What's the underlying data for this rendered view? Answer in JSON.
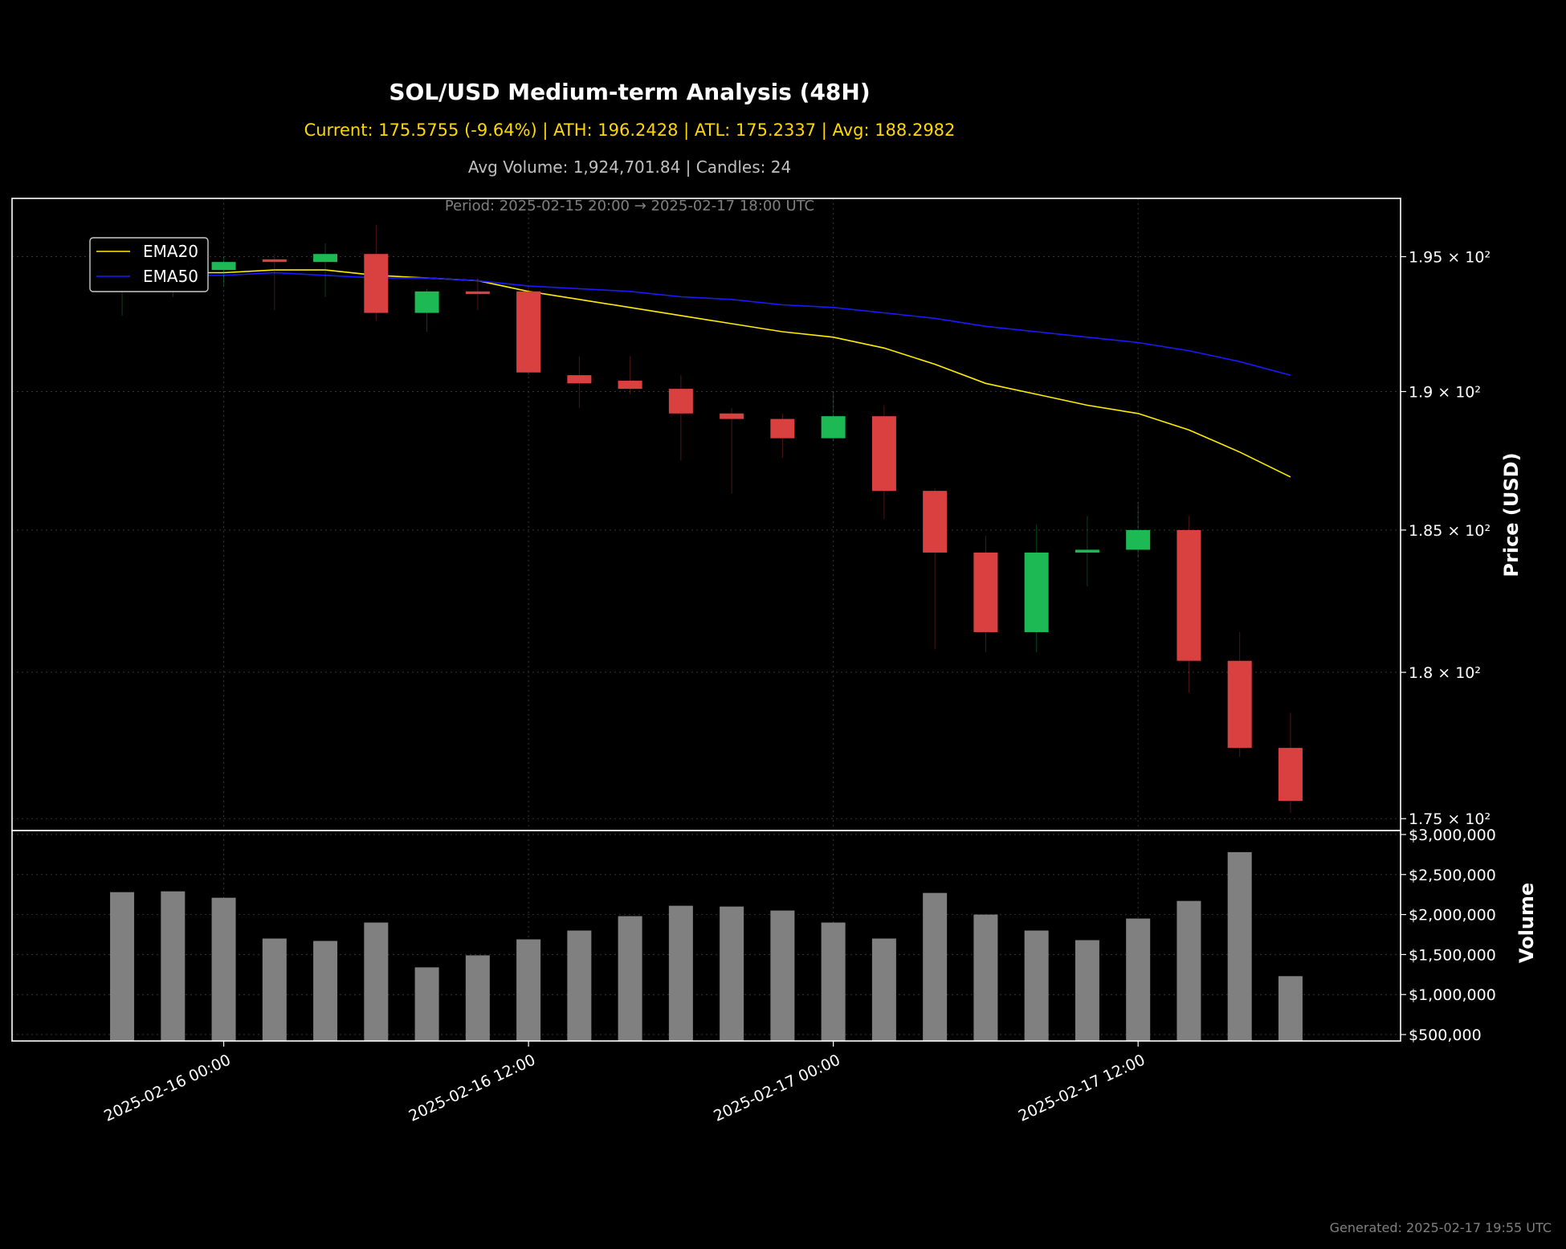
{
  "header": {
    "title": "SOL/USD Medium-term Analysis (48H)",
    "subtitle": "Current: 175.5755 (-9.64%) | ATH: 196.2428 | ATL: 175.2337 | Avg: 188.2982",
    "volume_info": "Avg Volume: 1,924,701.84 | Candles: 24",
    "period": "Period: 2025-02-15 20:00 → 2025-02-17 18:00 UTC"
  },
  "footer": {
    "generated": "Generated: 2025-02-17 19:55 UTC"
  },
  "colors": {
    "up": "#1db954",
    "down": "#d94040",
    "ema20": "#ffee00",
    "ema50": "#1a1aff",
    "volume": "#808080",
    "grid": "#333333"
  },
  "chart_data": [
    {
      "type": "candlestick",
      "title": "SOL/USD Medium-term Analysis (48H)",
      "ylabel": "Price (USD)",
      "yscale": "log",
      "ylim": [
        174.6,
        197.2
      ],
      "xlim": [
        "2025-02-15 15:40",
        "2025-02-17 22:20"
      ],
      "y_ticks": [
        175,
        180,
        185,
        190,
        195
      ],
      "y_tick_labels": [
        "1.75 × 10²",
        "1.8 × 10²",
        "1.85 × 10²",
        "1.9 × 10²",
        "1.95 × 10²"
      ],
      "x_ticks": [
        "2025-02-16 00:00",
        "2025-02-16 12:00",
        "2025-02-17 00:00",
        "2025-02-17 12:00"
      ],
      "grid": true,
      "legend_position": "upper-left",
      "candles": [
        {
          "t": "2025-02-15 20:00",
          "o": 194.2,
          "h": 195.2,
          "l": 192.8,
          "c": 194.3
        },
        {
          "t": "2025-02-15 22:00",
          "o": 194.3,
          "h": 195.6,
          "l": 193.5,
          "c": 194.4
        },
        {
          "t": "2025-02-16 00:00",
          "o": 194.5,
          "h": 195.0,
          "l": 193.9,
          "c": 194.8
        },
        {
          "t": "2025-02-16 02:00",
          "o": 194.9,
          "h": 195.1,
          "l": 193.0,
          "c": 194.8
        },
        {
          "t": "2025-02-16 04:00",
          "o": 194.8,
          "h": 195.5,
          "l": 193.5,
          "c": 195.1
        },
        {
          "t": "2025-02-16 06:00",
          "o": 195.1,
          "h": 196.2,
          "l": 192.6,
          "c": 192.9
        },
        {
          "t": "2025-02-16 08:00",
          "o": 192.9,
          "h": 193.8,
          "l": 192.2,
          "c": 193.7
        },
        {
          "t": "2025-02-16 10:00",
          "o": 193.7,
          "h": 194.2,
          "l": 193.0,
          "c": 193.6
        },
        {
          "t": "2025-02-16 12:00",
          "o": 193.7,
          "h": 193.9,
          "l": 190.6,
          "c": 190.7
        },
        {
          "t": "2025-02-16 14:00",
          "o": 190.6,
          "h": 191.3,
          "l": 189.4,
          "c": 190.3
        },
        {
          "t": "2025-02-16 16:00",
          "o": 190.4,
          "h": 191.3,
          "l": 189.9,
          "c": 190.1
        },
        {
          "t": "2025-02-16 18:00",
          "o": 190.1,
          "h": 190.6,
          "l": 187.5,
          "c": 189.2
        },
        {
          "t": "2025-02-16 20:00",
          "o": 189.2,
          "h": 189.4,
          "l": 186.3,
          "c": 189.0
        },
        {
          "t": "2025-02-16 22:00",
          "o": 189.0,
          "h": 189.2,
          "l": 187.6,
          "c": 188.3
        },
        {
          "t": "2025-02-17 00:00",
          "o": 188.3,
          "h": 190.0,
          "l": 188.2,
          "c": 189.1
        },
        {
          "t": "2025-02-17 02:00",
          "o": 189.1,
          "h": 189.5,
          "l": 185.4,
          "c": 186.4
        },
        {
          "t": "2025-02-17 04:00",
          "o": 186.4,
          "h": 186.5,
          "l": 180.8,
          "c": 184.2
        },
        {
          "t": "2025-02-17 06:00",
          "o": 184.2,
          "h": 184.8,
          "l": 180.7,
          "c": 181.4
        },
        {
          "t": "2025-02-17 08:00",
          "o": 181.4,
          "h": 185.2,
          "l": 180.7,
          "c": 184.2
        },
        {
          "t": "2025-02-17 10:00",
          "o": 184.2,
          "h": 185.5,
          "l": 183.0,
          "c": 184.3
        },
        {
          "t": "2025-02-17 12:00",
          "o": 184.3,
          "h": 186.0,
          "l": 184.0,
          "c": 185.0
        },
        {
          "t": "2025-02-17 14:00",
          "o": 185.0,
          "h": 185.5,
          "l": 179.3,
          "c": 180.4
        },
        {
          "t": "2025-02-17 16:00",
          "o": 180.4,
          "h": 181.4,
          "l": 177.1,
          "c": 177.4
        },
        {
          "t": "2025-02-17 18:00",
          "o": 177.4,
          "h": 178.6,
          "l": 175.2,
          "c": 175.6
        }
      ],
      "series": [
        {
          "name": "EMA20",
          "values": [
            194.3,
            194.4,
            194.4,
            194.5,
            194.5,
            194.3,
            194.2,
            194.1,
            193.7,
            193.4,
            193.1,
            192.8,
            192.5,
            192.2,
            192.0,
            191.6,
            191.0,
            190.3,
            189.9,
            189.5,
            189.2,
            188.6,
            187.8,
            186.9
          ]
        },
        {
          "name": "EMA50",
          "values": [
            194.3,
            194.3,
            194.3,
            194.4,
            194.3,
            194.2,
            194.2,
            194.1,
            193.9,
            193.8,
            193.7,
            193.5,
            193.4,
            193.2,
            193.1,
            192.9,
            192.7,
            192.4,
            192.2,
            192.0,
            191.8,
            191.5,
            191.1,
            190.6
          ]
        }
      ]
    },
    {
      "type": "bar",
      "ylabel": "Volume",
      "ylim": [
        420000,
        3050000
      ],
      "y_ticks": [
        500000,
        1000000,
        1500000,
        2000000,
        2500000,
        3000000
      ],
      "y_tick_labels": [
        "$500,000",
        "$1,000,000",
        "$1,500,000",
        "$2,000,000",
        "$2,500,000",
        "$3,000,000"
      ],
      "x_tick_labels": [
        "2025-02-16 00:00",
        "2025-02-16 12:00",
        "2025-02-17 00:00",
        "2025-02-17 12:00"
      ],
      "values": [
        2280000,
        2290000,
        2210000,
        1700000,
        1670000,
        1900000,
        1340000,
        1490000,
        1690000,
        1800000,
        1980000,
        2110000,
        2100000,
        2050000,
        1900000,
        1700000,
        2270000,
        2000000,
        1800000,
        1680000,
        1950000,
        2170000,
        2780000,
        1230000
      ]
    }
  ]
}
